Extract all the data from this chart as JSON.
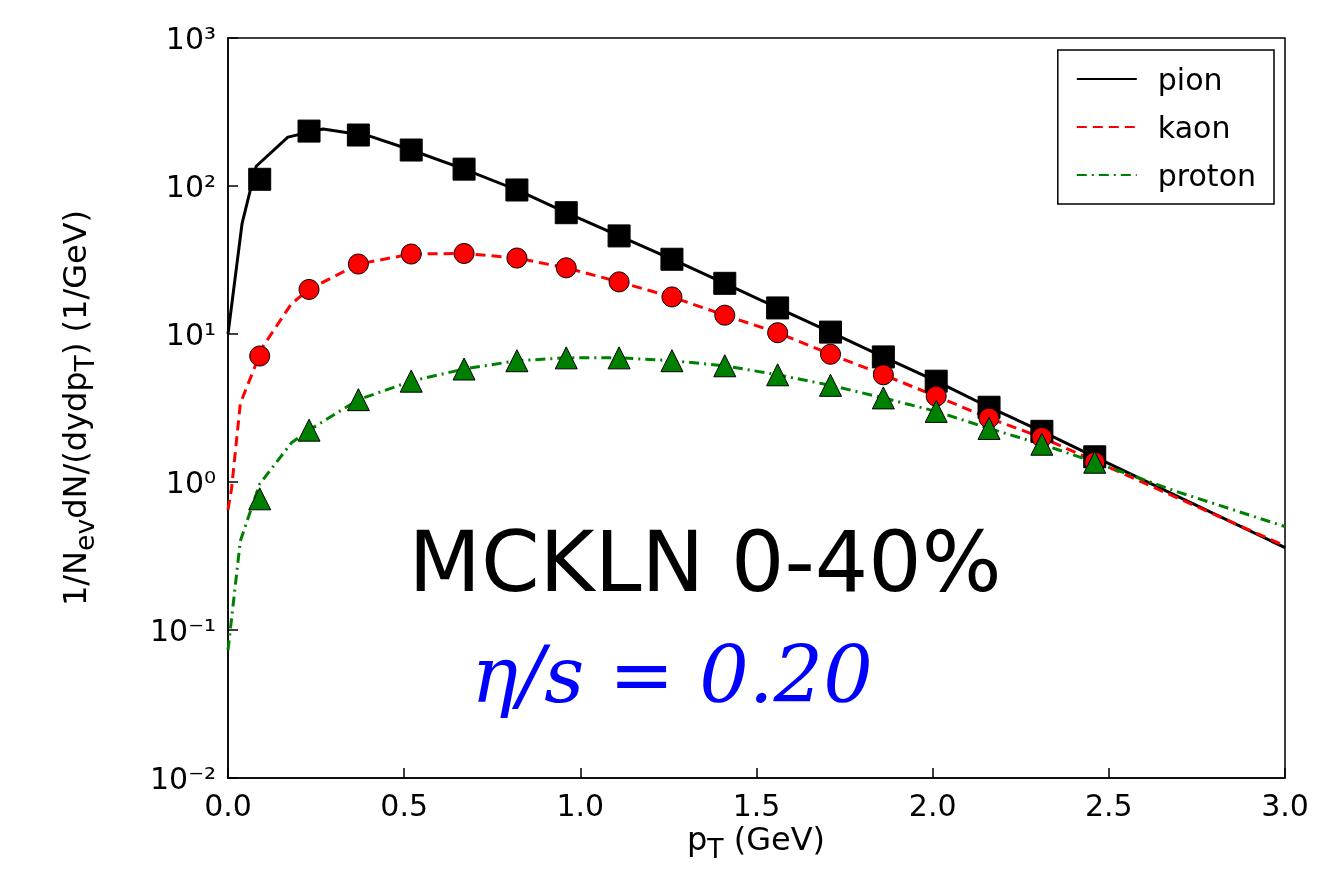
{
  "chart_data": {
    "type": "line",
    "xlabel": "p$_{T}$ (GeV)",
    "ylabel": "1/N$_{ev}$dN/(dydp$_{T}$) (1/GeV)",
    "annotations": [
      "MCKLN 0-40%",
      "η/s = 0.20"
    ],
    "log": "y",
    "xlim": [
      0,
      3
    ],
    "xticks": [
      {
        "value": 0,
        "label": "0.0"
      },
      0.5,
      {
        "value": 1,
        "label": "1.0"
      },
      1.5,
      {
        "value": 2,
        "label": "2.0"
      },
      2.5,
      {
        "value": 3,
        "label": "3.0"
      }
    ],
    "ylim": [
      0.01,
      1000
    ],
    "yticks": [
      {
        "value": 0.01,
        "label": "10⁻²"
      },
      {
        "value": 0.1,
        "label": "10⁻¹"
      },
      {
        "value": 1,
        "label": "10⁰"
      },
      {
        "value": 10,
        "label": "10¹"
      },
      {
        "value": 100,
        "label": "10²"
      },
      {
        "value": 1000,
        "label": "10³"
      }
    ],
    "grid": false,
    "legend": "top right",
    "series": [
      {
        "name": "pion",
        "color": "#000000",
        "line_style": "solid",
        "marker": "none",
        "x": [
          0,
          0.04,
          0.08,
          0.17,
          0.27,
          0.4,
          0.52,
          0.67,
          0.82,
          0.96,
          1.11,
          1.26,
          1.41,
          1.56,
          1.71,
          1.86,
          2.01,
          2.16,
          2.31,
          2.46,
          3.0
        ],
        "values": [
          10,
          56,
          136,
          214,
          243,
          218,
          175,
          130,
          94,
          66,
          46,
          32,
          22,
          15,
          10.3,
          7,
          4.8,
          3.2,
          2.2,
          1.48,
          0.36
        ]
      },
      {
        "name": "kaon",
        "color": "#ff0000",
        "line_style": "dashed",
        "marker": "none",
        "x": [
          0,
          0.01,
          0.035,
          0.1,
          0.18,
          0.23,
          0.37,
          0.52,
          0.67,
          0.82,
          0.96,
          1.11,
          1.26,
          1.41,
          1.56,
          1.71,
          1.86,
          2.01,
          2.16,
          2.31,
          3.0
        ],
        "values": [
          0.65,
          0.9,
          3.4,
          8.3,
          16,
          20,
          29.7,
          34.7,
          35,
          32.6,
          28,
          22.5,
          17.8,
          13.4,
          10.2,
          7.3,
          5.3,
          3.8,
          2.7,
          2.0,
          0.37
        ]
      },
      {
        "name": "proton",
        "color": "#008000",
        "line_style": "dashdot",
        "marker": "none",
        "x": [
          0,
          0.035,
          0.09,
          0.18,
          0.23,
          0.37,
          0.52,
          0.67,
          0.82,
          0.96,
          1.11,
          1.26,
          1.41,
          1.56,
          1.71,
          1.86,
          2.01,
          2.16,
          2.31,
          2.46,
          2.7,
          3.0
        ],
        "values": [
          0.073,
          0.4,
          0.97,
          1.84,
          2.24,
          3.6,
          4.8,
          5.8,
          6.6,
          6.9,
          6.9,
          6.6,
          6.1,
          5.3,
          4.5,
          3.7,
          3.0,
          2.3,
          1.8,
          1.36,
          0.85,
          0.5
        ]
      },
      {
        "type": "scatter",
        "color": "#000000",
        "marker": "square",
        "x": [
          0.09,
          0.23,
          0.37,
          0.52,
          0.67,
          0.82,
          0.96,
          1.11,
          1.26,
          1.41,
          1.56,
          1.71,
          1.86,
          2.01,
          2.16,
          2.31,
          2.46
        ],
        "values": [
          111,
          235,
          221,
          175,
          130,
          94,
          66,
          46,
          32,
          22,
          15,
          10.3,
          7,
          4.8,
          3.2,
          2.2,
          1.48
        ]
      },
      {
        "type": "scatter",
        "color": "#ff0000",
        "marker": "circle",
        "x": [
          0.09,
          0.23,
          0.37,
          0.52,
          0.67,
          0.82,
          0.96,
          1.11,
          1.26,
          1.41,
          1.56,
          1.71,
          1.86,
          2.01,
          2.16,
          2.31,
          2.46
        ],
        "values": [
          7.1,
          20,
          29.7,
          34.7,
          35,
          32.6,
          28,
          22.5,
          17.8,
          13.4,
          10.2,
          7.3,
          5.3,
          3.8,
          2.7,
          2.0,
          1.36
        ]
      },
      {
        "type": "scatter",
        "color": "#008000",
        "marker": "triangle",
        "x": [
          0.09,
          0.23,
          0.37,
          0.52,
          0.67,
          0.82,
          0.96,
          1.11,
          1.26,
          1.41,
          1.56,
          1.71,
          1.86,
          2.01,
          2.16,
          2.31,
          2.46
        ],
        "values": [
          0.77,
          2.24,
          3.6,
          4.8,
          5.8,
          6.6,
          6.9,
          6.9,
          6.6,
          6.1,
          5.3,
          4.5,
          3.7,
          3.0,
          2.3,
          1.8,
          1.36
        ]
      }
    ]
  }
}
